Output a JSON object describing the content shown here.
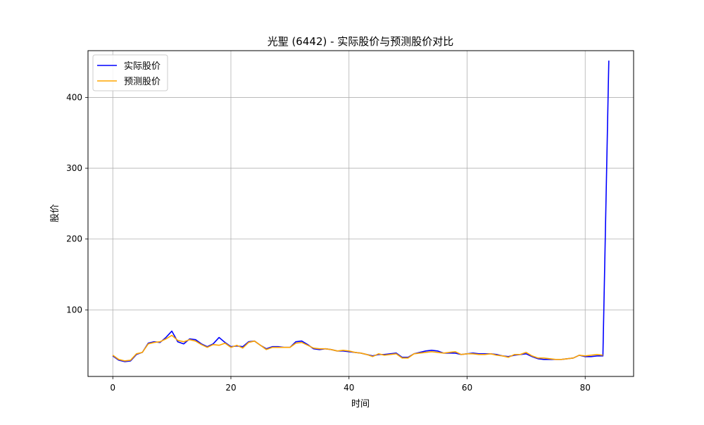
{
  "chart_data": {
    "type": "line",
    "title": "光聖 (6442) - 实际股价与预测股价对比",
    "xlabel": "时间",
    "ylabel": "股价",
    "xlim": [
      -4.2,
      88.2
    ],
    "ylim": [
      6,
      466
    ],
    "xticks": [
      0,
      20,
      40,
      60,
      80
    ],
    "yticks": [
      100,
      200,
      300,
      400
    ],
    "xtick_labels": [
      "0",
      "20",
      "40",
      "60",
      "80"
    ],
    "ytick_labels": [
      "100",
      "200",
      "300",
      "400"
    ],
    "grid": true,
    "legend_position": "top-left",
    "series": [
      {
        "name": "实际股价",
        "color": "#0000ff",
        "x": [
          0,
          1,
          2,
          3,
          4,
          5,
          6,
          7,
          8,
          9,
          10,
          11,
          12,
          13,
          14,
          15,
          16,
          17,
          18,
          19,
          20,
          21,
          22,
          23,
          24,
          25,
          26,
          27,
          28,
          29,
          30,
          31,
          32,
          33,
          34,
          35,
          36,
          37,
          38,
          39,
          40,
          41,
          42,
          43,
          44,
          45,
          46,
          47,
          48,
          49,
          50,
          51,
          52,
          53,
          54,
          55,
          56,
          57,
          58,
          59,
          60,
          61,
          62,
          63,
          64,
          65,
          66,
          67,
          68,
          69,
          70,
          71,
          72,
          73,
          74,
          75,
          76,
          77,
          78,
          79,
          80,
          81,
          82,
          83,
          84
        ],
        "values": [
          35,
          29,
          27,
          28,
          37,
          40,
          53,
          55,
          54,
          61,
          70,
          55,
          52,
          59,
          58,
          52,
          48,
          52,
          61,
          54,
          48,
          49,
          48,
          55,
          56,
          50,
          45,
          48,
          48,
          47,
          47,
          55,
          56,
          51,
          45,
          44,
          45,
          44,
          42,
          42,
          41,
          40,
          39,
          37,
          35,
          37,
          37,
          38,
          39,
          33,
          33,
          38,
          40,
          42,
          43,
          42,
          39,
          39,
          39,
          37,
          38,
          39,
          38,
          38,
          38,
          37,
          35,
          34,
          36,
          37,
          38,
          34,
          31,
          30,
          30,
          30,
          30,
          31,
          32,
          36,
          34,
          34,
          35,
          35,
          452
        ]
      },
      {
        "name": "预测股价",
        "color": "#ffa500",
        "x": [
          0,
          1,
          2,
          3,
          4,
          5,
          6,
          7,
          8,
          9,
          10,
          11,
          12,
          13,
          14,
          15,
          16,
          17,
          18,
          19,
          20,
          21,
          22,
          23,
          24,
          25,
          26,
          27,
          28,
          29,
          30,
          31,
          32,
          33,
          34,
          35,
          36,
          37,
          38,
          39,
          40,
          41,
          42,
          43,
          44,
          45,
          46,
          47,
          48,
          49,
          50,
          51,
          52,
          53,
          54,
          55,
          56,
          57,
          58,
          59,
          60,
          61,
          62,
          63,
          64,
          65,
          66,
          67,
          68,
          69,
          70,
          71,
          72,
          73,
          74,
          75,
          76,
          77,
          78,
          79,
          80,
          81,
          82,
          83
        ],
        "values": [
          36,
          30,
          28,
          29,
          38,
          40,
          52,
          54,
          55,
          59,
          64,
          57,
          55,
          58,
          56,
          51,
          47,
          51,
          50,
          53,
          47,
          50,
          46,
          54,
          56,
          50,
          44,
          47,
          47,
          47,
          47,
          53,
          54,
          50,
          46,
          45,
          45,
          44,
          42,
          43,
          42,
          40,
          39,
          37,
          34,
          38,
          36,
          37,
          38,
          32,
          32,
          38,
          39,
          40,
          41,
          40,
          39,
          40,
          41,
          37,
          38,
          38,
          37,
          37,
          38,
          36,
          35,
          33,
          37,
          37,
          40,
          35,
          32,
          32,
          31,
          30,
          30,
          31,
          32,
          36,
          35,
          36,
          37,
          36
        ]
      }
    ]
  }
}
